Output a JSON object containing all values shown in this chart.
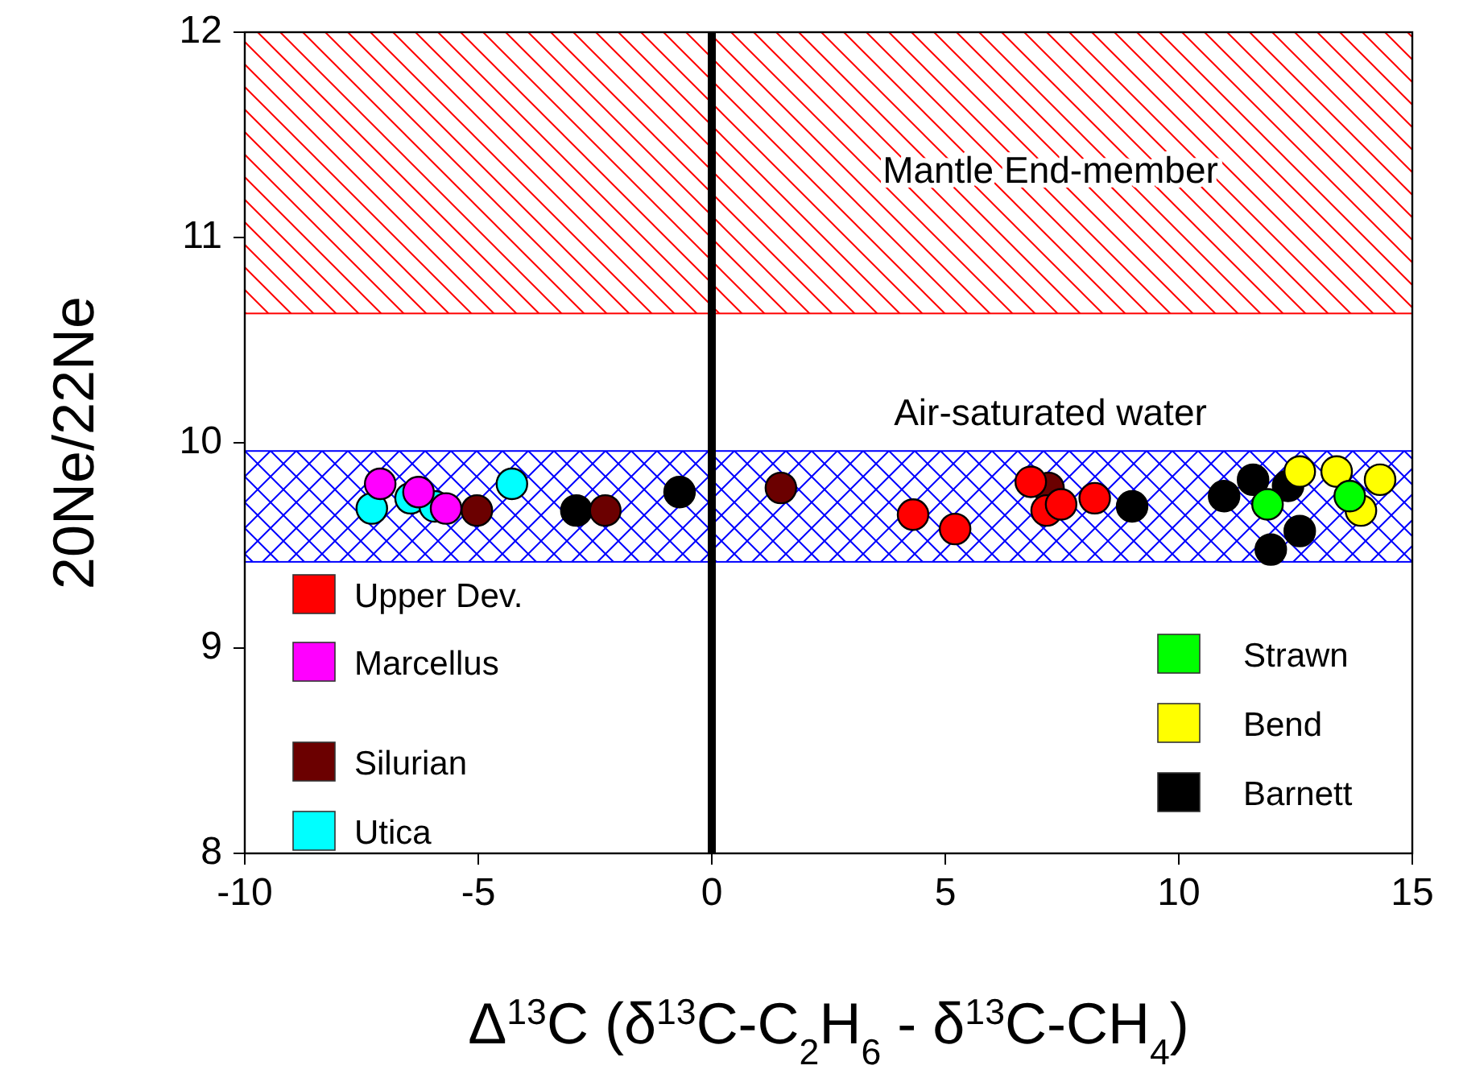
{
  "chart_data": {
    "type": "scatter",
    "xlabel": "Δ$^{13}$C (δ$^{13}$C-C$_{2}$H$_{6}$ - δ$^{13}$C-CH$_{4}$)",
    "ylabel": "20Ne/22Ne",
    "xlim": [
      -10,
      15
    ],
    "xticks": [
      -10,
      -5,
      0,
      5,
      10,
      15
    ],
    "ylim": [
      8,
      12
    ],
    "yticks": [
      8,
      9,
      10,
      11,
      12
    ],
    "grid": false,
    "legend": "bottom",
    "marker": "circle",
    "bands": [
      {
        "axis": "y",
        "from": 10.63,
        "to": 12,
        "color": "#ff0000",
        "label": "Mantle End-member"
      },
      {
        "axis": "y",
        "from": 9.42,
        "to": 9.96,
        "color": "#0000ff",
        "label": "Air-saturated water"
      }
    ],
    "ref_lines": [
      {
        "axis": "x",
        "value": 0,
        "color": "#000000"
      }
    ],
    "series": [
      {
        "name": "Upper Dev.",
        "color": "#ff0000",
        "x": [
          4.31,
          5.21,
          6.83,
          7.17,
          7.48,
          8.2
        ],
        "values": [
          9.65,
          9.58,
          9.81,
          9.67,
          9.7,
          9.73
        ]
      },
      {
        "name": "Marcellus",
        "color": "#ff00ff",
        "x": [
          -7.1,
          -6.28,
          -5.69
        ],
        "values": [
          9.8,
          9.76,
          9.68
        ]
      },
      {
        "name": "Silurian",
        "color": "#6b0000",
        "x": [
          -5.03,
          -2.28,
          1.48,
          7.21
        ],
        "values": [
          9.67,
          9.67,
          9.78,
          9.78
        ]
      },
      {
        "name": "Utica",
        "color": "#00ffff",
        "x": [
          -7.28,
          -6.45,
          -5.93,
          -4.28
        ],
        "values": [
          9.68,
          9.73,
          9.69,
          9.8
        ]
      },
      {
        "name": "Strawn",
        "color": "#00ff00",
        "x": [
          11.9,
          13.66
        ],
        "values": [
          9.7,
          9.74
        ]
      },
      {
        "name": "Bend",
        "color": "#ffff00",
        "x": [
          12.59,
          13.38,
          14.31,
          13.9
        ],
        "values": [
          9.86,
          9.86,
          9.82,
          9.67
        ]
      },
      {
        "name": "Barnett",
        "color": "#000000",
        "x": [
          -2.9,
          -0.69,
          9.0,
          10.97,
          11.59,
          12.34,
          12.59,
          11.97
        ],
        "values": [
          9.67,
          9.76,
          9.69,
          9.74,
          9.82,
          9.79,
          9.57,
          9.48
        ]
      }
    ]
  }
}
